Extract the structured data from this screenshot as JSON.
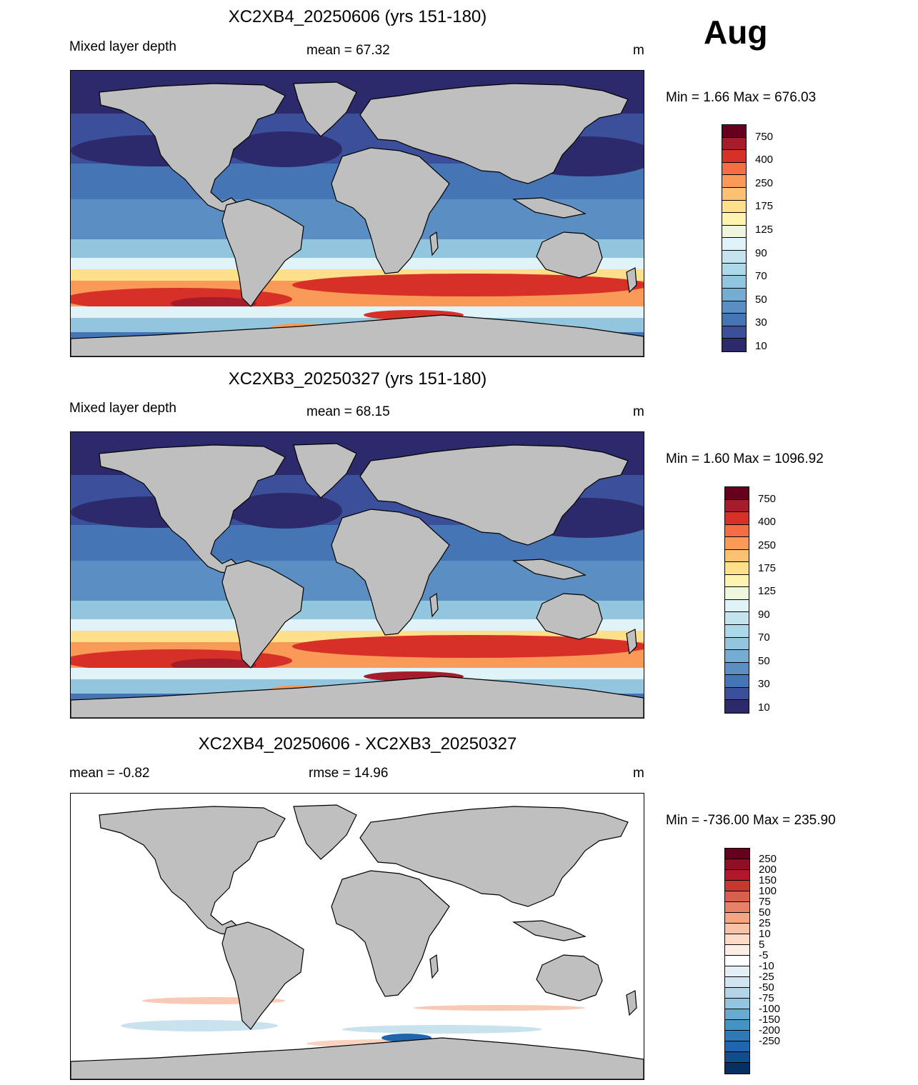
{
  "month": "Aug",
  "panels": [
    {
      "title": "XC2XB4_20250606 (yrs 151-180)",
      "left_label": "Mixed layer depth",
      "center_label": "mean =  67.32",
      "units": "m",
      "minmax": "Min =    1.66 Max = 676.03",
      "kind": "field"
    },
    {
      "title": "XC2XB3_20250327 (yrs 151-180)",
      "left_label": "Mixed layer depth",
      "center_label": "mean =  68.15",
      "units": "m",
      "minmax": "Min =    1.60 Max = 1096.92",
      "kind": "field"
    },
    {
      "title": "XC2XB4_20250606 - XC2XB3_20250327",
      "left_label": "mean =  -0.82",
      "center_label": "rmse =  14.96",
      "units": "m",
      "minmax": "Min = -736.00 Max = 235.90",
      "kind": "diff"
    }
  ],
  "colorbar_field": {
    "labels": [
      "750",
      "400",
      "250",
      "175",
      "125",
      "90",
      "70",
      "50",
      "30",
      "10"
    ],
    "colors": [
      "#67001f",
      "#a51c2b",
      "#d73027",
      "#f46d43",
      "#fa9a58",
      "#fdc173",
      "#fee08b",
      "#fff3b0",
      "#eef6dc",
      "#e0f3f8",
      "#c3e3ef",
      "#abd9e9",
      "#92c5de",
      "#74add1",
      "#5b8fc4",
      "#4575b4",
      "#3b4f9a",
      "#2c2a6b"
    ]
  },
  "colorbar_diff": {
    "labels": [
      "250",
      "200",
      "150",
      "100",
      "75",
      "50",
      "25",
      "10",
      "5",
      "-5",
      "-10",
      "-25",
      "-50",
      "-75",
      "-100",
      "-150",
      "-200",
      "-250"
    ],
    "colors": [
      "#67001f",
      "#8f0f24",
      "#b2182b",
      "#c7392f",
      "#d6604d",
      "#e58267",
      "#f4a582",
      "#f8c2a6",
      "#fddbc7",
      "#fdeee5",
      "#ffffff",
      "#e4eef5",
      "#d1e5f0",
      "#b3d3e8",
      "#92c5de",
      "#6aaad1",
      "#4393c3",
      "#3079b8",
      "#2166ac",
      "#124c8a",
      "#053061"
    ]
  },
  "map_colors": {
    "land": "#bfbfbf",
    "coast": "#000000",
    "ocean_arctic": "#2c2a6b",
    "ocean_north": "#3b4f9a",
    "ocean_mid": "#4575b4",
    "ocean_tropic": "#5b8fc4",
    "ocean_sub": "#92c5de",
    "ocean_pale": "#e0f3f8",
    "ocean_yellow": "#fee08b",
    "ocean_orange": "#fa9a58",
    "ocean_red": "#d73027",
    "ocean_dark": "#a51c2b",
    "diff_bg": "#ffffff",
    "diff_pos": "#f4a582",
    "diff_neg": "#92c5de",
    "diff_strong": "#2166ac"
  }
}
